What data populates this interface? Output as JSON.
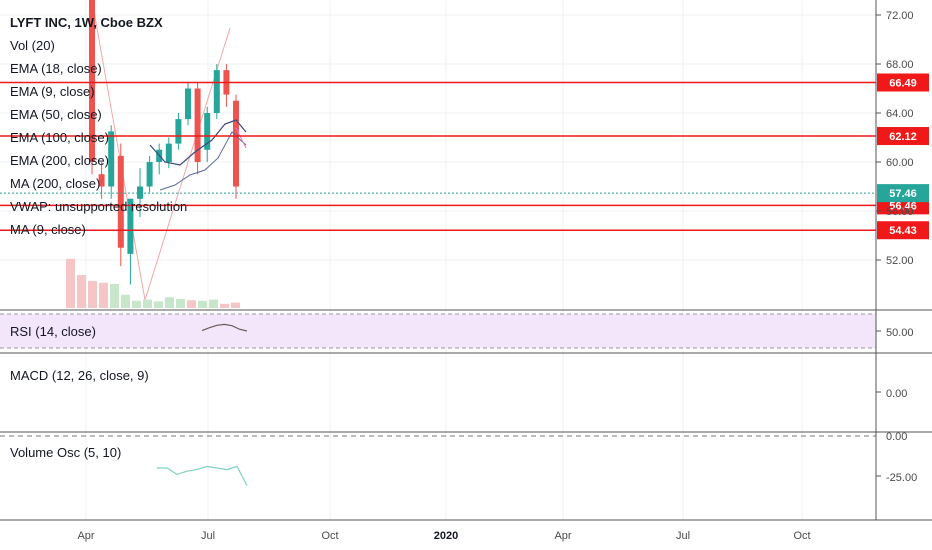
{
  "chart_data": {
    "type": "candlestick",
    "title": "LYFT INC, 1W, Cboe BZX",
    "indicators": [
      "Vol (20)",
      "EMA (18, close)",
      "EMA (9, close)",
      "EMA (50, close)",
      "EMA (100, close)",
      "EMA (200, close)",
      "MA (200, close)",
      "VWAP: unsupported resolution",
      "MA (9, close)"
    ],
    "price_axis": {
      "ylim": [
        49.5,
        73.5
      ],
      "ticks": [
        "72.00",
        "68.00",
        "64.00",
        "60.00",
        "56.00",
        "52.00"
      ]
    },
    "time_axis": {
      "ticks": [
        "Apr",
        "Jul",
        "Oct",
        "2020",
        "Apr",
        "Jul",
        "Oct"
      ],
      "bold": [
        "2020"
      ]
    },
    "levels": [
      {
        "value": 66.49,
        "label": "66.49",
        "color": "#f01818"
      },
      {
        "value": 62.12,
        "label": "62.12",
        "color": "#f01818"
      },
      {
        "value": 56.46,
        "label": "56.46",
        "color": "#f01818"
      },
      {
        "value": 54.43,
        "label": "54.43",
        "color": "#f01818"
      }
    ],
    "last_price": {
      "value": 57.46,
      "label": "57.46",
      "color": "#26a69a"
    },
    "candles": [
      {
        "o": 78.0,
        "h": 78.5,
        "c": 60.0,
        "l": 59.0
      },
      {
        "o": 59.0,
        "h": 60.0,
        "c": 58.0,
        "l": 57.0
      },
      {
        "o": 58.0,
        "h": 63.0,
        "c": 62.5,
        "l": 57.0
      },
      {
        "o": 60.5,
        "h": 61.5,
        "c": 53.0,
        "l": 51.5
      },
      {
        "o": 52.5,
        "h": 57.0,
        "c": 57.0,
        "l": 50.0
      },
      {
        "o": 57.0,
        "h": 59.5,
        "c": 58.0,
        "l": 55.5
      },
      {
        "o": 58.0,
        "h": 60.5,
        "c": 60.0,
        "l": 57.5
      },
      {
        "o": 60.0,
        "h": 61.5,
        "c": 61.0,
        "l": 59.0
      },
      {
        "o": 60.0,
        "h": 62.0,
        "c": 61.5,
        "l": 59.5
      },
      {
        "o": 61.5,
        "h": 64.0,
        "c": 63.5,
        "l": 61.0
      },
      {
        "o": 63.5,
        "h": 66.5,
        "c": 66.0,
        "l": 63.0
      },
      {
        "o": 66.0,
        "h": 66.5,
        "c": 60.0,
        "l": 59.0
      },
      {
        "o": 61.0,
        "h": 64.5,
        "c": 64.0,
        "l": 60.0
      },
      {
        "o": 64.0,
        "h": 68.0,
        "c": 67.5,
        "l": 63.5
      },
      {
        "o": 67.5,
        "h": 68.0,
        "c": 65.5,
        "l": 64.5
      },
      {
        "o": 65.0,
        "h": 65.5,
        "c": 58.0,
        "l": 57.0
      }
    ],
    "volume": [
      {
        "v": 0.82,
        "up": false
      },
      {
        "v": 0.55,
        "up": false
      },
      {
        "v": 0.45,
        "up": false
      },
      {
        "v": 0.42,
        "up": false
      },
      {
        "v": 0.4,
        "up": true
      },
      {
        "v": 0.22,
        "up": true
      },
      {
        "v": 0.12,
        "up": true
      },
      {
        "v": 0.14,
        "up": true
      },
      {
        "v": 0.11,
        "up": true
      },
      {
        "v": 0.18,
        "up": true
      },
      {
        "v": 0.15,
        "up": true
      },
      {
        "v": 0.13,
        "up": false
      },
      {
        "v": 0.12,
        "up": true
      },
      {
        "v": 0.14,
        "up": true
      },
      {
        "v": 0.07,
        "up": false
      },
      {
        "v": 0.09,
        "up": false
      }
    ],
    "rsi": {
      "label": "RSI (14, close)",
      "tick": "50.00",
      "values": [
        50.2,
        51.5,
        52.6,
        53.0,
        52.4,
        50.8,
        50.0
      ]
    },
    "macd": {
      "label": "MACD (12, 26, close, 9)",
      "tick": "0.00"
    },
    "volume_osc": {
      "label": "Volume Osc (5, 10)",
      "ticks": [
        "0.00",
        "-25.00"
      ],
      "values": [
        -20,
        -20,
        -24,
        -22,
        -21,
        -19,
        -20,
        -21,
        -19,
        -31
      ]
    }
  }
}
